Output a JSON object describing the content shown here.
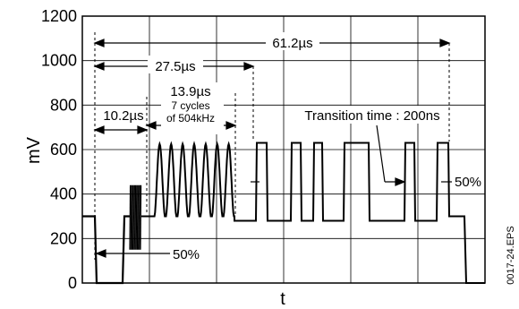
{
  "chart_data": {
    "type": "line",
    "title": "",
    "xlabel": "t",
    "ylabel": "mV",
    "ylim": [
      0,
      1200
    ],
    "y_ticks": [
      0,
      200,
      400,
      600,
      800,
      1000,
      1200
    ],
    "grid": true,
    "series": [
      {
        "waveform": "burst-signal",
        "levels_mV": {
          "high": 630,
          "mid": 300,
          "low": 280,
          "bottom": 0
        }
      }
    ],
    "annotations": {
      "span_61": "61.2µs",
      "span_27": "27.5µs",
      "span_13": "13.9µs",
      "cycles_line1": "7 cycles",
      "cycles_line2": "of 504kHz",
      "span_10": "10.2µs",
      "transition": "Transition time : 200ns",
      "pct_right": "50%",
      "pct_bottom": "50%"
    },
    "side_label": "0017-24.EPS"
  }
}
